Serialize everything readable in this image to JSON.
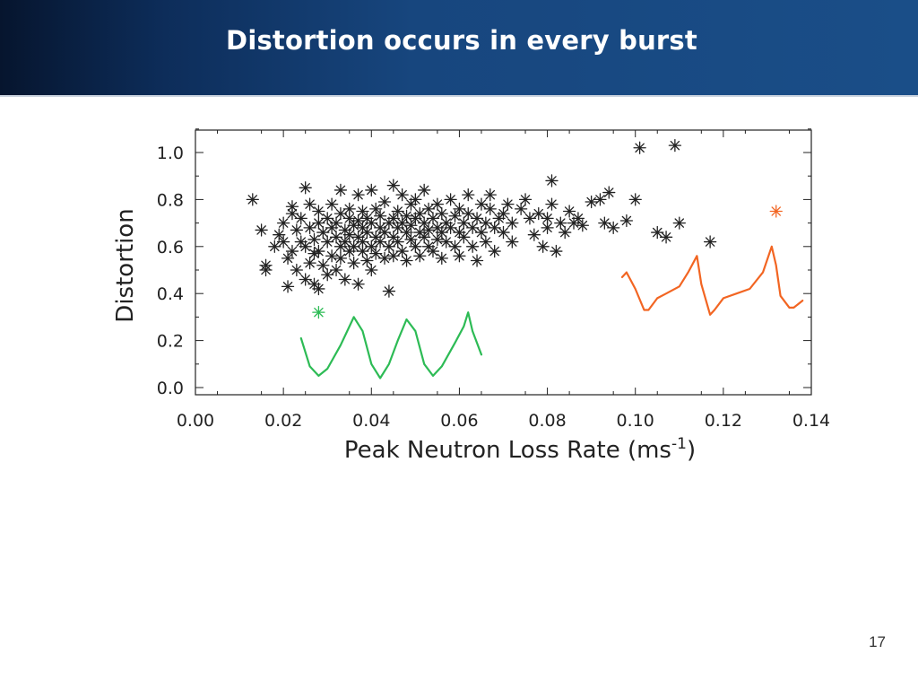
{
  "slide": {
    "title": "Distortion occurs in every burst",
    "page_number": "17"
  },
  "chart_data": {
    "type": "scatter",
    "title": "",
    "xlabel": "Peak Neutron Loss Rate (ms",
    "xlabel_superscript": "-1",
    "xlabel_suffix": ")",
    "ylabel": "Distortion",
    "xlim": [
      0.0,
      0.14
    ],
    "ylim": [
      0.0,
      1.1
    ],
    "xticks": [
      0.0,
      0.02,
      0.04,
      0.06,
      0.08,
      0.1,
      0.12,
      0.14
    ],
    "xtick_labels": [
      "0.00",
      "0.02",
      "0.04",
      "0.06",
      "0.08",
      "0.10",
      "0.12",
      "0.14"
    ],
    "yticks": [
      0.0,
      0.2,
      0.4,
      0.6,
      0.8,
      1.0
    ],
    "ytick_labels": [
      "0.0",
      "0.2",
      "0.4",
      "0.6",
      "0.8",
      "1.0"
    ],
    "grid": false,
    "legend": "none",
    "marker": "asterisk",
    "colors": {
      "points": "#222222",
      "green": "#2dbb55",
      "orange": "#f26522"
    },
    "series": [
      {
        "color": "#222222",
        "points": [
          [
            0.013,
            0.8
          ],
          [
            0.015,
            0.67
          ],
          [
            0.016,
            0.52
          ],
          [
            0.016,
            0.5
          ],
          [
            0.018,
            0.6
          ],
          [
            0.019,
            0.65
          ],
          [
            0.02,
            0.62
          ],
          [
            0.02,
            0.7
          ],
          [
            0.021,
            0.55
          ],
          [
            0.021,
            0.43
          ],
          [
            0.022,
            0.74
          ],
          [
            0.022,
            0.77
          ],
          [
            0.022,
            0.58
          ],
          [
            0.023,
            0.67
          ],
          [
            0.023,
            0.5
          ],
          [
            0.024,
            0.62
          ],
          [
            0.024,
            0.72
          ],
          [
            0.025,
            0.85
          ],
          [
            0.025,
            0.6
          ],
          [
            0.025,
            0.46
          ],
          [
            0.026,
            0.53
          ],
          [
            0.026,
            0.68
          ],
          [
            0.026,
            0.78
          ],
          [
            0.027,
            0.63
          ],
          [
            0.027,
            0.57
          ],
          [
            0.027,
            0.44
          ],
          [
            0.028,
            0.42
          ],
          [
            0.028,
            0.7
          ],
          [
            0.028,
            0.75
          ],
          [
            0.028,
            0.58
          ],
          [
            0.029,
            0.66
          ],
          [
            0.029,
            0.52
          ],
          [
            0.03,
            0.62
          ],
          [
            0.03,
            0.72
          ],
          [
            0.03,
            0.48
          ],
          [
            0.031,
            0.68
          ],
          [
            0.031,
            0.56
          ],
          [
            0.031,
            0.78
          ],
          [
            0.032,
            0.64
          ],
          [
            0.032,
            0.7
          ],
          [
            0.032,
            0.5
          ],
          [
            0.033,
            0.6
          ],
          [
            0.033,
            0.74
          ],
          [
            0.033,
            0.84
          ],
          [
            0.033,
            0.55
          ],
          [
            0.034,
            0.67
          ],
          [
            0.034,
            0.62
          ],
          [
            0.034,
            0.46
          ],
          [
            0.035,
            0.72
          ],
          [
            0.035,
            0.58
          ],
          [
            0.035,
            0.76
          ],
          [
            0.035,
            0.65
          ],
          [
            0.036,
            0.6
          ],
          [
            0.036,
            0.69
          ],
          [
            0.036,
            0.53
          ],
          [
            0.037,
            0.71
          ],
          [
            0.037,
            0.64
          ],
          [
            0.037,
            0.82
          ],
          [
            0.037,
            0.44
          ],
          [
            0.038,
            0.62
          ],
          [
            0.038,
            0.58
          ],
          [
            0.038,
            0.75
          ],
          [
            0.038,
            0.68
          ],
          [
            0.039,
            0.54
          ],
          [
            0.039,
            0.66
          ],
          [
            0.039,
            0.72
          ],
          [
            0.04,
            0.6
          ],
          [
            0.04,
            0.84
          ],
          [
            0.04,
            0.5
          ],
          [
            0.04,
            0.7
          ],
          [
            0.041,
            0.64
          ],
          [
            0.041,
            0.76
          ],
          [
            0.041,
            0.57
          ],
          [
            0.042,
            0.68
          ],
          [
            0.042,
            0.62
          ],
          [
            0.042,
            0.73
          ],
          [
            0.043,
            0.55
          ],
          [
            0.043,
            0.66
          ],
          [
            0.043,
            0.79
          ],
          [
            0.044,
            0.7
          ],
          [
            0.044,
            0.6
          ],
          [
            0.044,
            0.41
          ],
          [
            0.045,
            0.72
          ],
          [
            0.045,
            0.64
          ],
          [
            0.045,
            0.86
          ],
          [
            0.045,
            0.56
          ],
          [
            0.046,
            0.68
          ],
          [
            0.046,
            0.75
          ],
          [
            0.046,
            0.62
          ],
          [
            0.047,
            0.7
          ],
          [
            0.047,
            0.58
          ],
          [
            0.047,
            0.82
          ],
          [
            0.048,
            0.66
          ],
          [
            0.048,
            0.54
          ],
          [
            0.048,
            0.73
          ],
          [
            0.049,
            0.63
          ],
          [
            0.049,
            0.78
          ],
          [
            0.049,
            0.69
          ],
          [
            0.05,
            0.6
          ],
          [
            0.05,
            0.72
          ],
          [
            0.05,
            0.8
          ],
          [
            0.051,
            0.66
          ],
          [
            0.051,
            0.56
          ],
          [
            0.051,
            0.74
          ],
          [
            0.052,
            0.64
          ],
          [
            0.052,
            0.7
          ],
          [
            0.052,
            0.84
          ],
          [
            0.053,
            0.6
          ],
          [
            0.053,
            0.76
          ],
          [
            0.053,
            0.67
          ],
          [
            0.054,
            0.72
          ],
          [
            0.054,
            0.58
          ],
          [
            0.055,
            0.68
          ],
          [
            0.055,
            0.78
          ],
          [
            0.055,
            0.63
          ],
          [
            0.056,
            0.74
          ],
          [
            0.056,
            0.66
          ],
          [
            0.056,
            0.55
          ],
          [
            0.057,
            0.7
          ],
          [
            0.057,
            0.62
          ],
          [
            0.058,
            0.8
          ],
          [
            0.058,
            0.68
          ],
          [
            0.059,
            0.6
          ],
          [
            0.059,
            0.73
          ],
          [
            0.06,
            0.66
          ],
          [
            0.06,
            0.76
          ],
          [
            0.06,
            0.56
          ],
          [
            0.061,
            0.7
          ],
          [
            0.061,
            0.64
          ],
          [
            0.062,
            0.74
          ],
          [
            0.062,
            0.82
          ],
          [
            0.063,
            0.68
          ],
          [
            0.063,
            0.6
          ],
          [
            0.064,
            0.72
          ],
          [
            0.064,
            0.54
          ],
          [
            0.065,
            0.78
          ],
          [
            0.065,
            0.66
          ],
          [
            0.066,
            0.7
          ],
          [
            0.066,
            0.62
          ],
          [
            0.067,
            0.76
          ],
          [
            0.067,
            0.82
          ],
          [
            0.068,
            0.68
          ],
          [
            0.068,
            0.58
          ],
          [
            0.069,
            0.72
          ],
          [
            0.07,
            0.74
          ],
          [
            0.07,
            0.66
          ],
          [
            0.071,
            0.78
          ],
          [
            0.072,
            0.7
          ],
          [
            0.072,
            0.62
          ],
          [
            0.074,
            0.76
          ],
          [
            0.075,
            0.8
          ],
          [
            0.076,
            0.72
          ],
          [
            0.077,
            0.65
          ],
          [
            0.078,
            0.74
          ],
          [
            0.079,
            0.6
          ],
          [
            0.08,
            0.68
          ],
          [
            0.08,
            0.72
          ],
          [
            0.081,
            0.78
          ],
          [
            0.081,
            0.88
          ],
          [
            0.082,
            0.58
          ],
          [
            0.083,
            0.7
          ],
          [
            0.084,
            0.66
          ],
          [
            0.085,
            0.75
          ],
          [
            0.086,
            0.7
          ],
          [
            0.087,
            0.72
          ],
          [
            0.088,
            0.69
          ],
          [
            0.09,
            0.79
          ],
          [
            0.092,
            0.8
          ],
          [
            0.093,
            0.7
          ],
          [
            0.094,
            0.83
          ],
          [
            0.095,
            0.68
          ],
          [
            0.098,
            0.71
          ],
          [
            0.1,
            0.8
          ],
          [
            0.101,
            1.02
          ],
          [
            0.105,
            0.66
          ],
          [
            0.107,
            0.64
          ],
          [
            0.109,
            1.03
          ],
          [
            0.11,
            0.7
          ],
          [
            0.117,
            0.62
          ]
        ]
      },
      {
        "color": "#2dbb55",
        "points": [
          [
            0.028,
            0.32
          ]
        ]
      },
      {
        "color": "#f26522",
        "points": [
          [
            0.132,
            0.75
          ]
        ]
      }
    ],
    "waveforms": [
      {
        "color": "#2dbb55",
        "points": [
          [
            0.024,
            0.21
          ],
          [
            0.026,
            0.09
          ],
          [
            0.028,
            0.05
          ],
          [
            0.03,
            0.08
          ],
          [
            0.033,
            0.18
          ],
          [
            0.036,
            0.3
          ],
          [
            0.038,
            0.24
          ],
          [
            0.04,
            0.1
          ],
          [
            0.042,
            0.04
          ],
          [
            0.044,
            0.1
          ],
          [
            0.046,
            0.2
          ],
          [
            0.048,
            0.29
          ],
          [
            0.05,
            0.24
          ],
          [
            0.052,
            0.1
          ],
          [
            0.054,
            0.05
          ],
          [
            0.056,
            0.09
          ],
          [
            0.059,
            0.19
          ],
          [
            0.061,
            0.26
          ],
          [
            0.062,
            0.32
          ],
          [
            0.063,
            0.24
          ],
          [
            0.065,
            0.14
          ]
        ]
      },
      {
        "color": "#f26522",
        "points": [
          [
            0.097,
            0.47
          ],
          [
            0.098,
            0.49
          ],
          [
            0.1,
            0.42
          ],
          [
            0.102,
            0.33
          ],
          [
            0.103,
            0.33
          ],
          [
            0.105,
            0.38
          ],
          [
            0.107,
            0.4
          ],
          [
            0.11,
            0.43
          ],
          [
            0.112,
            0.49
          ],
          [
            0.114,
            0.56
          ],
          [
            0.115,
            0.44
          ],
          [
            0.117,
            0.31
          ],
          [
            0.118,
            0.33
          ],
          [
            0.12,
            0.38
          ],
          [
            0.123,
            0.4
          ],
          [
            0.126,
            0.42
          ],
          [
            0.129,
            0.49
          ],
          [
            0.131,
            0.6
          ],
          [
            0.132,
            0.52
          ],
          [
            0.133,
            0.39
          ],
          [
            0.135,
            0.34
          ],
          [
            0.136,
            0.34
          ],
          [
            0.138,
            0.37
          ]
        ]
      }
    ]
  }
}
